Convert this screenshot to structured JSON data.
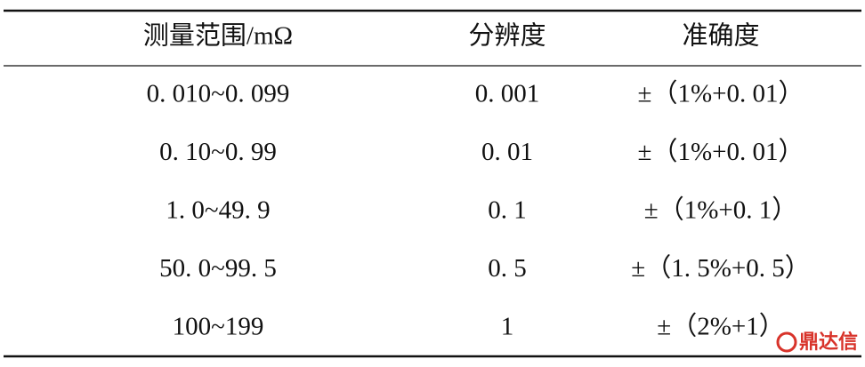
{
  "table": {
    "header": [
      "测量范围/mΩ",
      "分辨度",
      "准确度"
    ],
    "rows": [
      [
        "0. 010~0. 099",
        "0. 001",
        "±（1%+0. 01）"
      ],
      [
        "0. 10~0. 99",
        "0. 01",
        "±（1%+0. 01）"
      ],
      [
        "1. 0~49. 9",
        "0. 1",
        "±（1%+0. 1）"
      ],
      [
        "50. 0~99. 5",
        "0. 5",
        "±（1. 5%+0. 5）"
      ],
      [
        "100~199",
        "1",
        "±（2%+1）"
      ]
    ]
  },
  "watermark": {
    "text": "鼎达信"
  }
}
